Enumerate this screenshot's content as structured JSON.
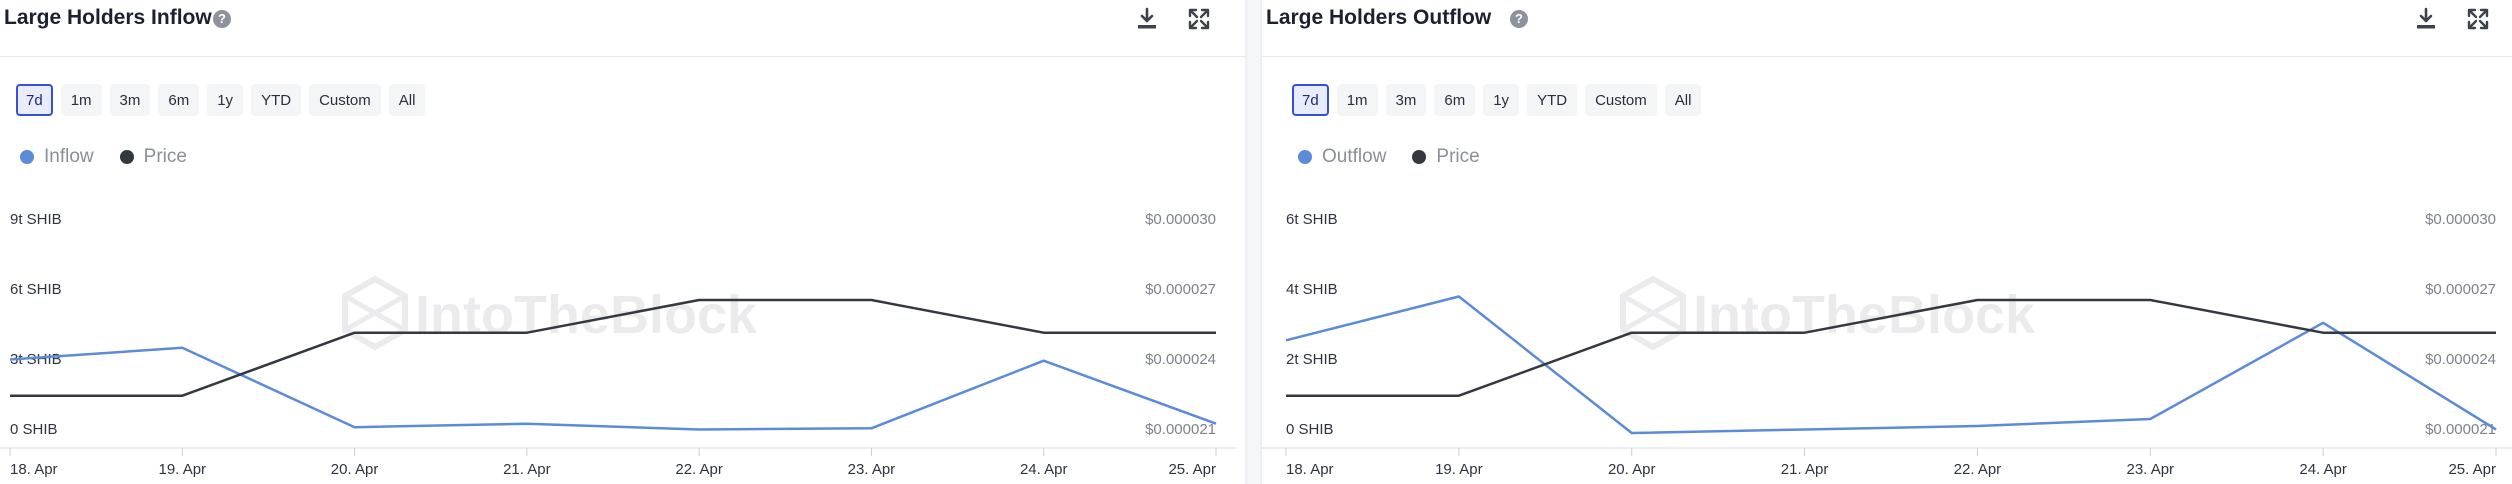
{
  "panels": [
    {
      "title": "Large Holders Inflow",
      "help_symbol": "?",
      "ranges": [
        "7d",
        "1m",
        "3m",
        "6m",
        "1y",
        "YTD",
        "Custom",
        "All"
      ],
      "active_range": "7d",
      "legend": [
        {
          "label": "Inflow",
          "color": "#5b8bd9"
        },
        {
          "label": "Price",
          "color": "#343840"
        }
      ],
      "watermark": "IntoTheBlock"
    },
    {
      "title": "Large Holders Outflow",
      "help_symbol": "?",
      "ranges": [
        "7d",
        "1m",
        "3m",
        "6m",
        "1y",
        "YTD",
        "Custom",
        "All"
      ],
      "active_range": "7d",
      "legend": [
        {
          "label": "Outflow",
          "color": "#5b8bd9"
        },
        {
          "label": "Price",
          "color": "#343840"
        }
      ],
      "watermark": "IntoTheBlock"
    }
  ],
  "chart_data": [
    {
      "type": "line",
      "x": [
        "18. Apr",
        "19. Apr",
        "20. Apr",
        "21. Apr",
        "22. Apr",
        "23. Apr",
        "24. Apr",
        "25. Apr"
      ],
      "y_left": {
        "ticks": [
          "0 SHIB",
          "3t SHIB",
          "6t SHIB",
          "9t SHIB"
        ],
        "tick_values": [
          0,
          3,
          6,
          9
        ],
        "lim": [
          0,
          9
        ],
        "unit": "trillion SHIB"
      },
      "y_right": {
        "ticks": [
          "$0.000021",
          "$0.000024",
          "$0.000027",
          "$0.000030"
        ],
        "tick_values": [
          2.1e-05,
          2.4e-05,
          2.7e-05,
          3e-05
        ],
        "lim": [
          2.1e-05,
          3e-05
        ]
      },
      "series": [
        {
          "name": "Inflow",
          "axis": "left",
          "color": "#5b8bd9",
          "values": [
            3.45,
            3.95,
            0.55,
            0.7,
            0.45,
            0.5,
            3.4,
            0.7
          ]
        },
        {
          "name": "Price",
          "axis": "right",
          "color": "#343840",
          "values": [
            2.29e-05,
            2.29e-05,
            2.56e-05,
            2.56e-05,
            2.7e-05,
            2.7e-05,
            2.56e-05,
            2.56e-05
          ]
        }
      ],
      "grid": false,
      "legend_position": "top-left"
    },
    {
      "type": "line",
      "x": [
        "18. Apr",
        "19. Apr",
        "20. Apr",
        "21. Apr",
        "22. Apr",
        "23. Apr",
        "24. Apr",
        "25. Apr"
      ],
      "y_left": {
        "ticks": [
          "0 SHIB",
          "2t SHIB",
          "4t SHIB",
          "6t SHIB"
        ],
        "tick_values": [
          0,
          2,
          4,
          6
        ],
        "lim": [
          0,
          6
        ],
        "unit": "trillion SHIB"
      },
      "y_right": {
        "ticks": [
          "$0.000021",
          "$0.000024",
          "$0.000027",
          "$0.000030"
        ],
        "tick_values": [
          2.1e-05,
          2.4e-05,
          2.7e-05,
          3e-05
        ],
        "lim": [
          2.1e-05,
          3e-05
        ]
      },
      "series": [
        {
          "name": "Outflow",
          "axis": "left",
          "color": "#5b8bd9",
          "values": [
            2.85,
            4.1,
            0.2,
            0.3,
            0.4,
            0.6,
            3.35,
            0.3
          ]
        },
        {
          "name": "Price",
          "axis": "right",
          "color": "#343840",
          "values": [
            2.29e-05,
            2.29e-05,
            2.56e-05,
            2.56e-05,
            2.7e-05,
            2.7e-05,
            2.56e-05,
            2.56e-05
          ]
        }
      ],
      "grid": false,
      "legend_position": "top-left"
    }
  ]
}
